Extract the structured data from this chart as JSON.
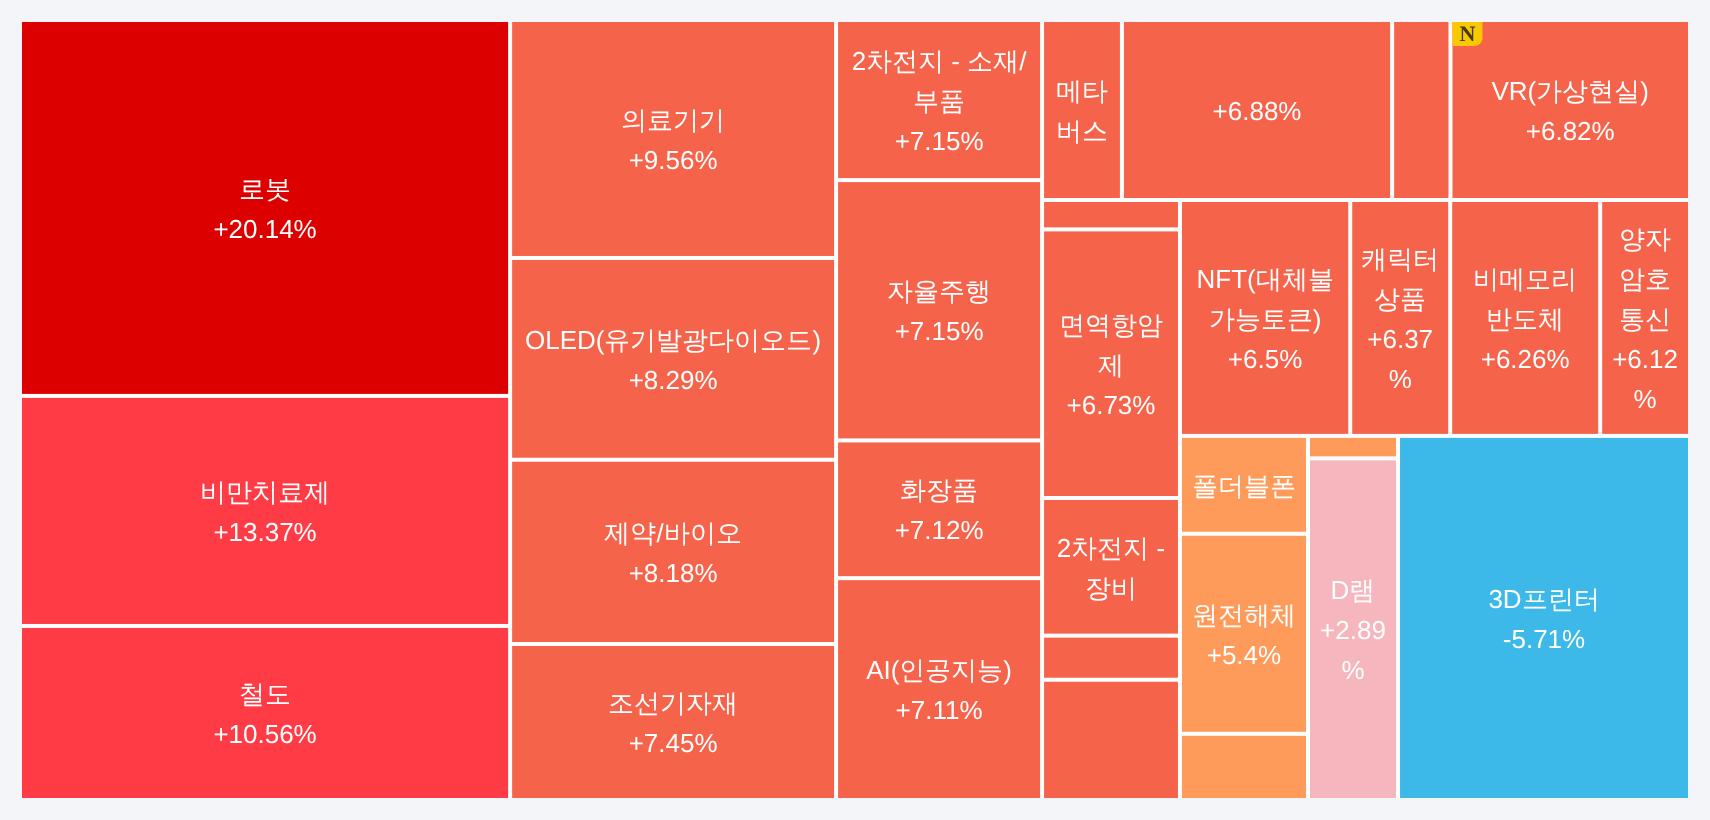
{
  "chart_data": {
    "type": "other",
    "categories": [
      "로봇",
      "비만치료제",
      "철도",
      "의료기기",
      "OLED(유기발광다이오드)",
      "제약/바이오",
      "조선기자재",
      "2차전지 - 소재/부품",
      "자율주행",
      "화장품",
      "AI(인공지능)",
      "메타버스",
      null,
      null,
      "VR(가상현실)",
      null,
      "면역항암제",
      "2차전지 - 장비",
      null,
      null,
      "NFT(대체불가능토큰)",
      "캐릭터 상품",
      "비메모리 반도체",
      "양자암호통신",
      "폴더블폰",
      "원전해체",
      null,
      null,
      "D램",
      "3D프린터"
    ],
    "values": [
      20.14,
      13.37,
      10.56,
      9.56,
      8.29,
      8.18,
      7.45,
      7.15,
      7.15,
      7.12,
      7.11,
      null,
      null,
      null,
      6.82,
      null,
      6.73,
      null,
      null,
      null,
      6.5,
      6.37,
      6.26,
      6.12,
      null,
      5.4,
      null,
      null,
      2.89,
      -5.71
    ],
    "value_labels": [
      "+20.14%",
      "+13.37%",
      "+10.56%",
      "+9.56%",
      "+8.29%",
      "+8.18%",
      "+7.45%",
      "+7.15%",
      "+7.15%",
      "+7.12%",
      "+7.11%",
      null,
      "+6.88%",
      null,
      "+6.82%",
      null,
      "+6.73%",
      null,
      null,
      null,
      "+6.5%",
      "+6.37%",
      "+6.26%",
      "+6.12%",
      null,
      "+5.4%",
      null,
      null,
      "+2.89%",
      "-5.71%"
    ],
    "colors": [
      "#dc0000",
      "#ff3b46",
      "#ff3b46",
      "#f5634b",
      "#f5634b",
      "#f5634b",
      "#f5634b",
      "#f5634b",
      "#f5634b",
      "#f5634b",
      "#f5634b",
      "#f5634b",
      "#f5634b",
      "#f5634b",
      "#f5634b",
      "#f5634b",
      "#f5634b",
      "#f5634b",
      "#f5634b",
      "#f5634b",
      "#f5634b",
      "#f5634b",
      "#f5634b",
      "#f5634b",
      "#ff9b5a",
      "#ff9b5a",
      "#ff9b5a",
      "#ff9b5a",
      "#f6b6bd",
      "#3cb9e8"
    ],
    "annotations": [
      {
        "text": "N",
        "x": "VR(가상현실)"
      }
    ]
  }
}
